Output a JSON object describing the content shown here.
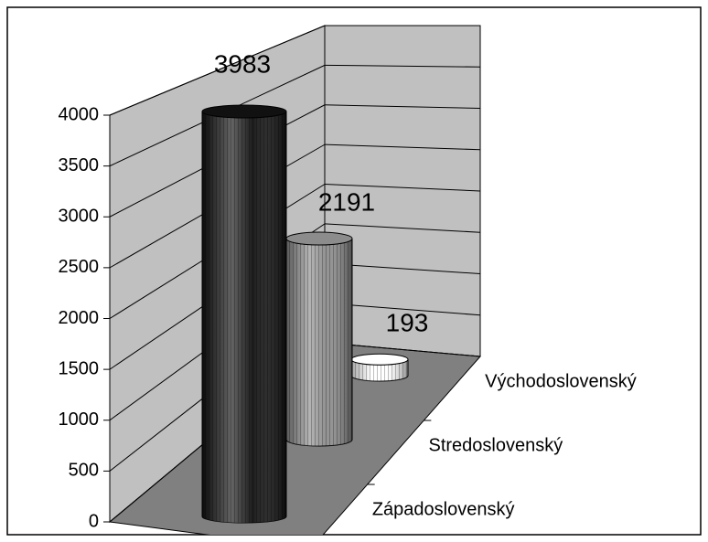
{
  "chart_data": {
    "type": "cylinder3d",
    "categories": [
      "Východoslovenský",
      "Stredoslovenský",
      "Západoslovenský"
    ],
    "values": [
      3983,
      2191,
      193
    ],
    "colors": [
      "#111111",
      "#8c8c8c",
      "#ffffff"
    ],
    "ylim": [
      0,
      4000
    ],
    "yticks": [
      0,
      500,
      1000,
      1500,
      2000,
      2500,
      3000,
      3500,
      4000
    ],
    "grid": true
  }
}
